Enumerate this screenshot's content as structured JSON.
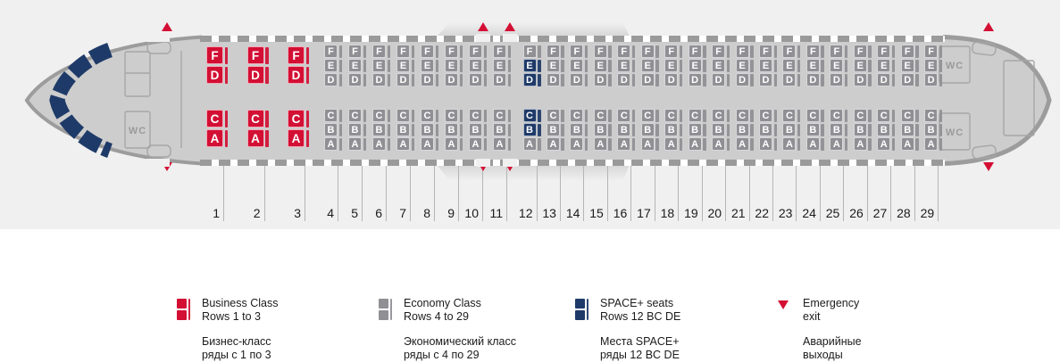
{
  "diagram": {
    "type": "aircraft-seat-map",
    "wc_label": "WC",
    "letters": {
      "business_upper": [
        "F",
        "D"
      ],
      "business_lower": [
        "C",
        "A"
      ],
      "economy_upper": [
        "F",
        "E",
        "D"
      ],
      "economy_lower": [
        "C",
        "B",
        "A"
      ]
    },
    "rows": [
      {
        "n": 1,
        "class": "business"
      },
      {
        "n": 2,
        "class": "business"
      },
      {
        "n": 3,
        "class": "business"
      },
      {
        "n": 4,
        "class": "economy"
      },
      {
        "n": 5,
        "class": "economy"
      },
      {
        "n": 6,
        "class": "economy"
      },
      {
        "n": 7,
        "class": "economy"
      },
      {
        "n": 8,
        "class": "economy"
      },
      {
        "n": 9,
        "class": "economy"
      },
      {
        "n": 10,
        "class": "economy"
      },
      {
        "n": 11,
        "class": "economy"
      },
      {
        "n": 12,
        "class": "economy",
        "space_plus": [
          "E",
          "D",
          "C",
          "B"
        ]
      },
      {
        "n": 13,
        "class": "economy"
      },
      {
        "n": 14,
        "class": "economy"
      },
      {
        "n": 15,
        "class": "economy"
      },
      {
        "n": 16,
        "class": "economy"
      },
      {
        "n": 17,
        "class": "economy"
      },
      {
        "n": 18,
        "class": "economy"
      },
      {
        "n": 19,
        "class": "economy"
      },
      {
        "n": 20,
        "class": "economy"
      },
      {
        "n": 21,
        "class": "economy"
      },
      {
        "n": 22,
        "class": "economy"
      },
      {
        "n": 23,
        "class": "economy"
      },
      {
        "n": 24,
        "class": "economy"
      },
      {
        "n": 25,
        "class": "economy"
      },
      {
        "n": 26,
        "class": "economy"
      },
      {
        "n": 27,
        "class": "economy"
      },
      {
        "n": 28,
        "class": "economy"
      },
      {
        "n": 29,
        "class": "economy"
      }
    ]
  },
  "colors": {
    "business": "#d30f34",
    "economy": "#8f8f94",
    "space_plus": "#1e3a68",
    "exit": "#d30f34",
    "fuselage_fill": "#cdcdcd",
    "fuselage_stroke": "#9c9c9c",
    "cockpit_window": "#1e3a68"
  },
  "legend": {
    "items": [
      {
        "swatch": "business",
        "en_line1": "Business Class",
        "en_line2": "Rows 1 to 3",
        "ru_line1": "Бизнес-класс",
        "ru_line2": "ряды с 1 по 3"
      },
      {
        "swatch": "economy",
        "en_line1": "Economy Class",
        "en_line2": "Rows 4 to 29",
        "ru_line1": "Экономический класс",
        "ru_line2": "ряды с 4 по 29"
      },
      {
        "swatch": "space_plus",
        "en_line1": "SPACE+ seats",
        "en_line2": "Rows 12 BC DE",
        "ru_line1": "Места SPACE+",
        "ru_line2": "ряды 12 BC DE"
      },
      {
        "swatch": "exit",
        "en_line1": "Emergency",
        "en_line2": "exit",
        "ru_line1": "Аварийные",
        "ru_line2": "выходы"
      }
    ]
  }
}
